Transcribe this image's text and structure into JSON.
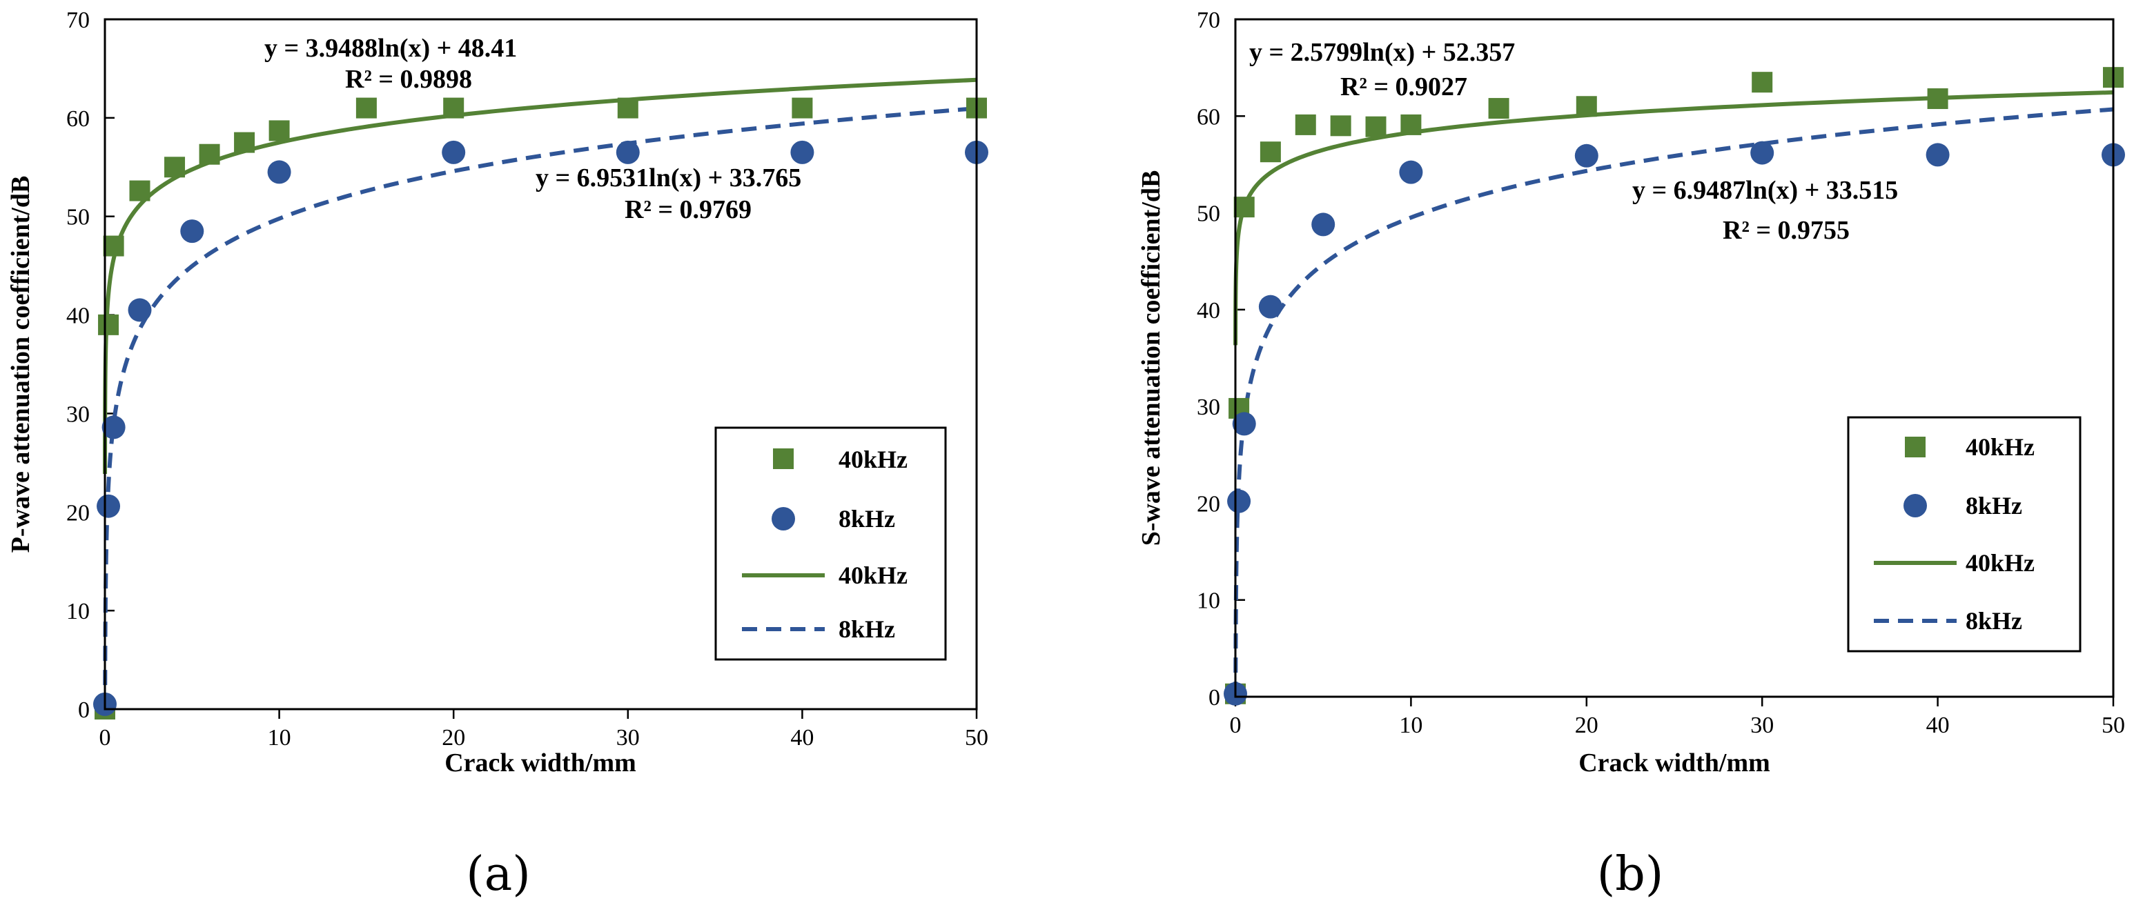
{
  "chart_data": [
    {
      "type": "scatter",
      "panel_label": "(a)",
      "xlabel": "Crack width/mm",
      "ylabel": "P-wave attenuation coefficient/dB",
      "xlim": [
        0,
        50
      ],
      "ylim": [
        0,
        70
      ],
      "xticks": [
        0,
        10,
        20,
        30,
        40,
        50
      ],
      "yticks": [
        0,
        10,
        20,
        30,
        40,
        50,
        60,
        70
      ],
      "legend_position": "right",
      "series": [
        {
          "name": "40kHz",
          "kind": "points",
          "marker": "square",
          "color": "#548235",
          "x": [
            0,
            0.2,
            0.5,
            2,
            4,
            6,
            8,
            10,
            15,
            20,
            30,
            40,
            50
          ],
          "y": [
            0,
            39,
            47,
            52.6,
            55,
            56.3,
            57.5,
            58.7,
            61,
            61,
            61,
            61,
            61
          ]
        },
        {
          "name": "8kHz",
          "kind": "points",
          "marker": "circle",
          "color": "#2F5597",
          "x": [
            0,
            0.2,
            0.5,
            2,
            5,
            10,
            20,
            30,
            40,
            50
          ],
          "y": [
            0.5,
            20.6,
            28.6,
            40.5,
            48.5,
            54.5,
            56.5,
            56.5,
            56.5,
            56.5
          ]
        },
        {
          "name": "40kHz",
          "kind": "trendline",
          "line": "solid",
          "color": "#548235",
          "a": 3.9488,
          "b": 48.41
        },
        {
          "name": "8kHz",
          "kind": "trendline",
          "line": "dashed",
          "color": "#2F5597",
          "a": 6.9531,
          "b": 33.765
        }
      ],
      "annotations": [
        {
          "line1": "y = 3.9488ln(x) + 48.41",
          "line2": "R² = 0.9898"
        },
        {
          "line1": "y = 6.9531ln(x) + 33.765",
          "line2": "R² = 0.9769"
        }
      ]
    },
    {
      "type": "scatter",
      "panel_label": "(b)",
      "xlabel": "Crack width/mm",
      "ylabel": "S-wave attenuation coefficient/dB",
      "xlim": [
        0,
        50
      ],
      "ylim": [
        0,
        70
      ],
      "xticks": [
        0,
        10,
        20,
        30,
        40,
        50
      ],
      "yticks": [
        0,
        10,
        20,
        30,
        40,
        50,
        60,
        70
      ],
      "legend_position": "right",
      "series": [
        {
          "name": "40kHz",
          "kind": "points",
          "marker": "square",
          "color": "#548235",
          "x": [
            0,
            0.2,
            0.5,
            2,
            4,
            6,
            8,
            10,
            15,
            20,
            30,
            40,
            50
          ],
          "y": [
            0.3,
            29.8,
            50.6,
            56.3,
            59.1,
            59,
            58.9,
            59.1,
            60.8,
            61,
            63.5,
            61.8,
            64
          ]
        },
        {
          "name": "8kHz",
          "kind": "points",
          "marker": "circle",
          "color": "#2F5597",
          "x": [
            0,
            0.2,
            0.5,
            2,
            5,
            10,
            20,
            30,
            40,
            50
          ],
          "y": [
            0.3,
            20.2,
            28.2,
            40.3,
            48.8,
            54.2,
            55.9,
            56.2,
            56,
            56
          ]
        },
        {
          "name": "40kHz",
          "kind": "trendline",
          "line": "solid",
          "color": "#548235",
          "a": 2.5799,
          "b": 52.357
        },
        {
          "name": "8kHz",
          "kind": "trendline",
          "line": "dashed",
          "color": "#2F5597",
          "a": 6.9487,
          "b": 33.515
        }
      ],
      "annotations": [
        {
          "line1": "y = 2.5799ln(x) + 52.357",
          "line2": "R² = 0.9027"
        },
        {
          "line1": "y = 6.9487ln(x) + 33.515",
          "line2": "R² = 0.9755"
        }
      ]
    }
  ]
}
